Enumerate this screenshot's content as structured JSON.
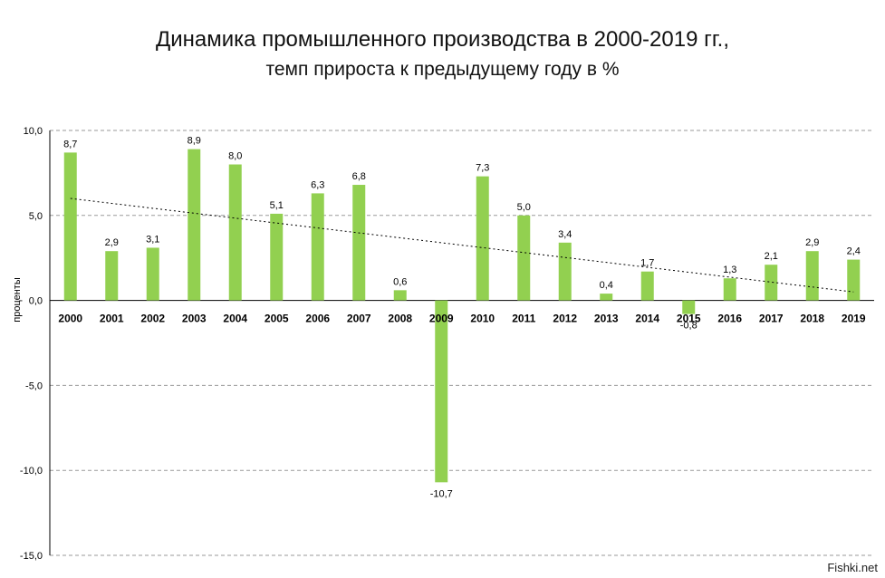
{
  "chart_data": {
    "type": "bar",
    "title": "Динамика промышленного производства в 2000-2019 гг.,",
    "subtitle": "темп прироста к предыдущему году в %",
    "ylabel": "проценты",
    "xlabel": "",
    "ylim": [
      -15,
      10
    ],
    "yticks": [
      10,
      5,
      0,
      -5,
      -10,
      -15
    ],
    "ytick_labels": [
      "10,0",
      "5,0",
      "0,0",
      "-5,0",
      "-10,0",
      "-15,0"
    ],
    "grid": "horizontal dashed",
    "categories": [
      "2000",
      "2001",
      "2002",
      "2003",
      "2004",
      "2005",
      "2006",
      "2007",
      "2008",
      "2009",
      "2010",
      "2011",
      "2012",
      "2013",
      "2014",
      "2015",
      "2016",
      "2017",
      "2018",
      "2019"
    ],
    "values": [
      8.7,
      2.9,
      3.1,
      8.9,
      8.0,
      5.1,
      6.3,
      6.8,
      0.6,
      -10.7,
      7.3,
      5.0,
      3.4,
      0.4,
      1.7,
      -0.8,
      1.3,
      2.1,
      2.9,
      2.4
    ],
    "value_labels": [
      "8,7",
      "2,9",
      "3,1",
      "8,9",
      "8,0",
      "5,1",
      "6,3",
      "6,8",
      "0,6",
      "-10,7",
      "7,3",
      "5,0",
      "3,4",
      "0,4",
      "1,7",
      "-0,8",
      "1,3",
      "2,1",
      "2,9",
      "2,4"
    ],
    "trendline": {
      "style": "dotted",
      "start": 6.0,
      "end": 0.5
    },
    "colors": {
      "bar": "#92d050",
      "trend": "#000000",
      "grid": "#9a9a9a"
    }
  },
  "watermark": "Fishki.net"
}
